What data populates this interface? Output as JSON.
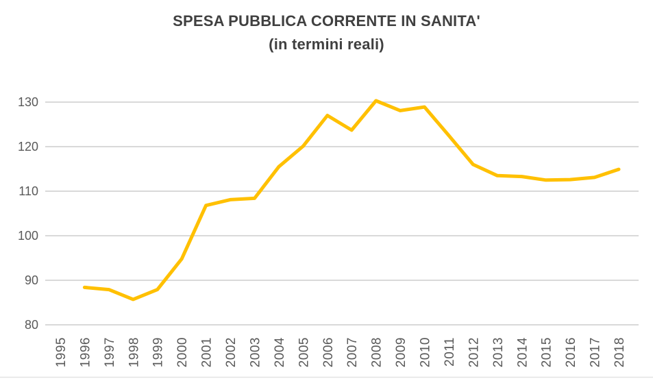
{
  "styles": {
    "background": "#FFFFFF",
    "title_color": "#404040",
    "tick_color": "#595959",
    "grid_color": "#D9D9D9",
    "frame_color": "#E2E2E2",
    "line_color": "#FFC000"
  },
  "chart_data": {
    "type": "line",
    "title": "SPESA PUBBLICA CORRENTE IN SANITA'",
    "subtitle": "(in termini reali)",
    "x_axis_labels": [
      "1995",
      "1996",
      "1997",
      "1998",
      "1999",
      "2000",
      "2001",
      "2002",
      "2003",
      "2004",
      "2005",
      "2006",
      "2007",
      "2008",
      "2009",
      "2010",
      "2011",
      "2012",
      "2013",
      "2014",
      "2015",
      "2016",
      "2017",
      "2018"
    ],
    "series": [
      {
        "x": [
          1996,
          1997,
          1998,
          1999,
          2000,
          2001,
          2002,
          2003,
          2004,
          2005,
          2006,
          2007,
          2008,
          2009,
          2010,
          2011,
          2012,
          2013,
          2014,
          2015,
          2016,
          2017,
          2018
        ],
        "values": [
          88.4,
          87.9,
          85.7,
          87.9,
          94.8,
          106.8,
          108.1,
          108.4,
          115.5,
          120.1,
          127.0,
          123.7,
          130.3,
          128.1,
          128.9,
          122.5,
          116.0,
          113.5,
          113.3,
          112.5,
          112.6,
          113.1,
          114.9
        ],
        "color": "#FFC000"
      }
    ],
    "ylim": [
      80,
      130
    ],
    "y_ticks": [
      80,
      90,
      100,
      110,
      120,
      130
    ],
    "grid": true,
    "legend": "none"
  }
}
